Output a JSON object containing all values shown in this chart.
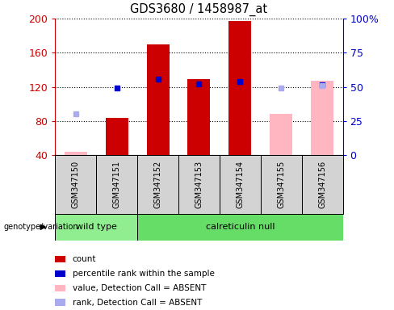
{
  "title": "GDS3680 / 1458987_at",
  "samples": [
    "GSM347150",
    "GSM347151",
    "GSM347152",
    "GSM347153",
    "GSM347154",
    "GSM347155",
    "GSM347156"
  ],
  "count_values": [
    null,
    84,
    170,
    129,
    197,
    null,
    null
  ],
  "value_absent": [
    44,
    null,
    null,
    null,
    null,
    88,
    127
  ],
  "percentile_rank": [
    null,
    119,
    129,
    123,
    126,
    null,
    122
  ],
  "rank_absent": [
    88,
    null,
    null,
    null,
    null,
    119,
    121
  ],
  "ylim_left": [
    40,
    200
  ],
  "ylim_right": [
    0,
    100
  ],
  "yticks_left": [
    40,
    80,
    120,
    160,
    200
  ],
  "yticks_right": [
    0,
    25,
    50,
    75,
    100
  ],
  "bar_width": 0.55,
  "count_color": "#CC0000",
  "value_absent_color": "#FFB6C1",
  "percentile_rank_color": "#0000CC",
  "rank_absent_color": "#AAAAEE",
  "plot_bg_color": "#FFFFFF",
  "axis_color_left": "#CC0000",
  "axis_color_right": "#0000CC",
  "sample_box_color": "#D3D3D3",
  "wt_color": "#90EE90",
  "cn_color": "#66DD66",
  "legend_items": [
    {
      "color": "#CC0000",
      "label": "count"
    },
    {
      "color": "#0000CC",
      "label": "percentile rank within the sample"
    },
    {
      "color": "#FFB6C1",
      "label": "value, Detection Call = ABSENT"
    },
    {
      "color": "#AAAAEE",
      "label": "rank, Detection Call = ABSENT"
    }
  ]
}
